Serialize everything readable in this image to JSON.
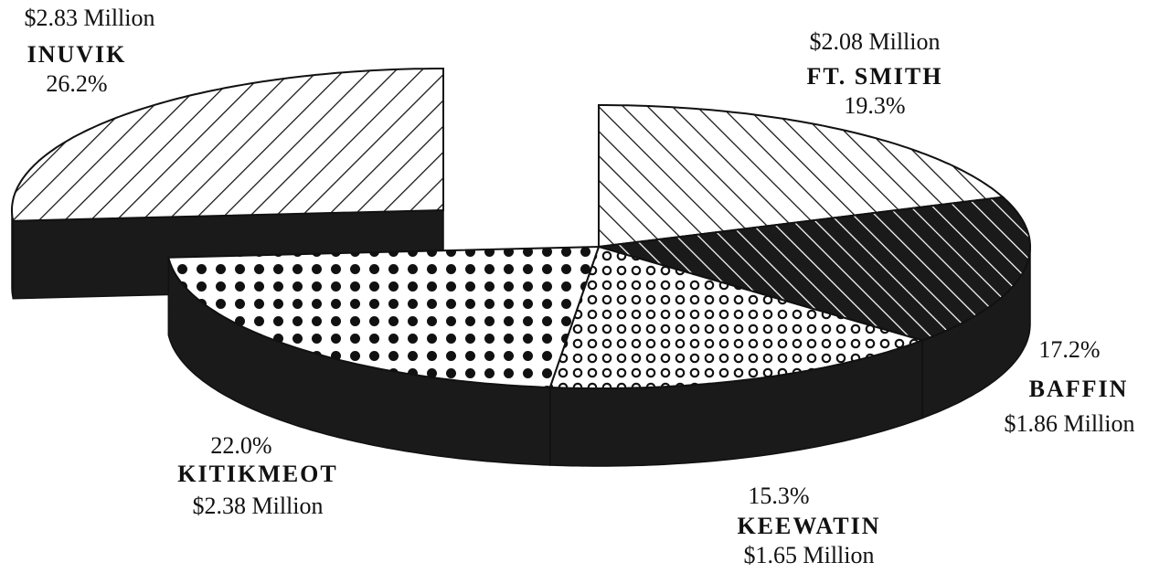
{
  "chart_data": {
    "type": "pie",
    "categories": [
      "INUVIK",
      "FT. SMITH",
      "BAFFIN",
      "KEEWATIN",
      "KITIKMEOT"
    ],
    "values": [
      26.2,
      19.3,
      17.2,
      15.3,
      22.0
    ],
    "value_labels": [
      "26.2%",
      "19.3%",
      "17.2%",
      "15.3%",
      "22.0%"
    ],
    "amount_labels": [
      "$2.83 Million",
      "$2.08 Million",
      "$1.86 Million",
      "$1.65 Million",
      "$2.38 Million"
    ]
  }
}
